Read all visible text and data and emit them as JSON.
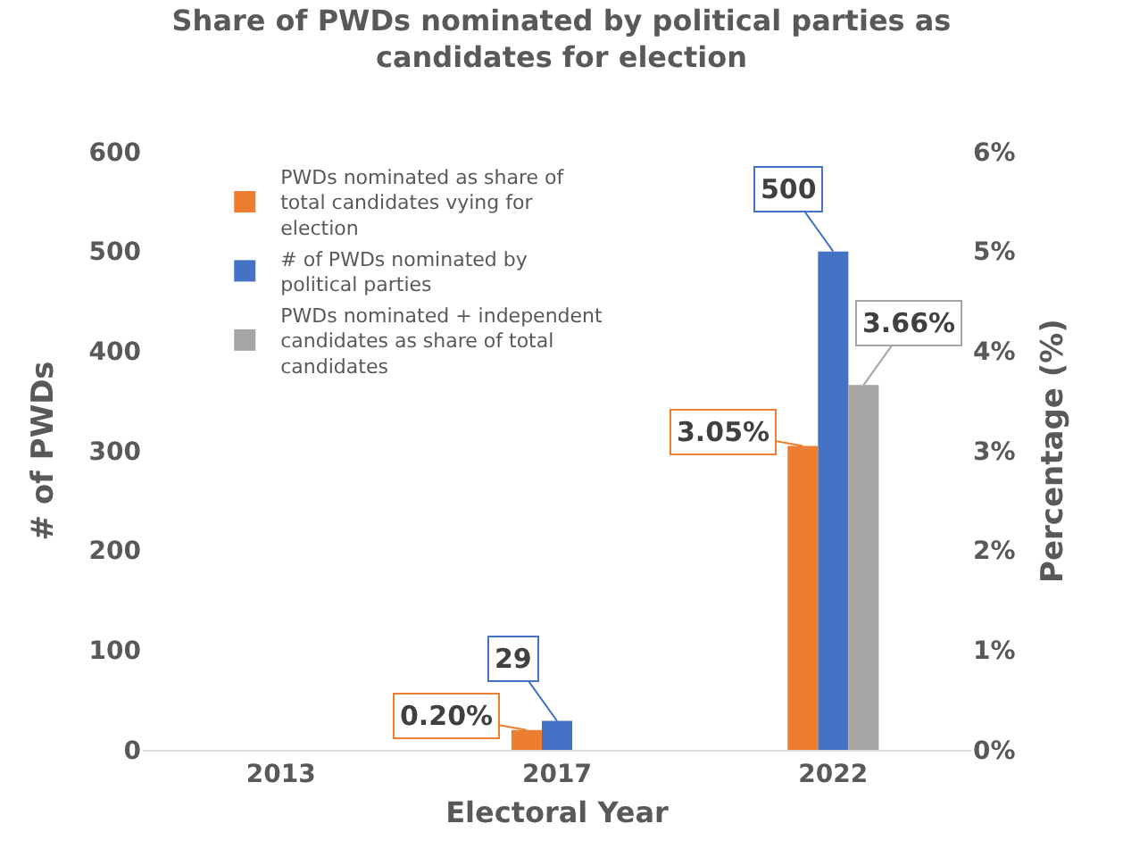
{
  "chart_data": {
    "type": "bar",
    "title": "Share of PWDs nominated by political parties as candidates for election",
    "xlabel": "Electoral Year",
    "ylabel": "# of PWDs",
    "y2label": "Percentage (%)",
    "categories": [
      "2013",
      "2017",
      "2022"
    ],
    "series": [
      {
        "name": "PWDs nominated as share of total candidates vying for election",
        "color": "#ed7d31",
        "axis": "y2",
        "values": [
          null,
          0.2,
          3.05
        ],
        "value_labels": [
          null,
          "0.20%",
          "3.05%"
        ]
      },
      {
        "name": "# of PWDs nominated by political parties",
        "color": "#4472c4",
        "axis": "y",
        "values": [
          null,
          29,
          500
        ],
        "value_labels": [
          null,
          "29",
          "500"
        ]
      },
      {
        "name": "PWDs nominated + independent candidates as share of total candidates",
        "color": "#a5a5a5",
        "axis": "y2",
        "values": [
          null,
          null,
          3.66
        ],
        "value_labels": [
          null,
          null,
          "3.66%"
        ]
      }
    ],
    "ylim": [
      0,
      600
    ],
    "yticks": [
      0,
      100,
      200,
      300,
      400,
      500,
      600
    ],
    "y2lim": [
      0,
      6
    ],
    "y2ticks": [
      {
        "value": 0,
        "label": "0%"
      },
      {
        "value": 1,
        "label": "1%"
      },
      {
        "value": 2,
        "label": "2%"
      },
      {
        "value": 3,
        "label": "3%"
      },
      {
        "value": 4,
        "label": "4%"
      },
      {
        "value": 5,
        "label": "5%"
      },
      {
        "value": 6,
        "label": "6%"
      }
    ],
    "legend": "top left"
  }
}
